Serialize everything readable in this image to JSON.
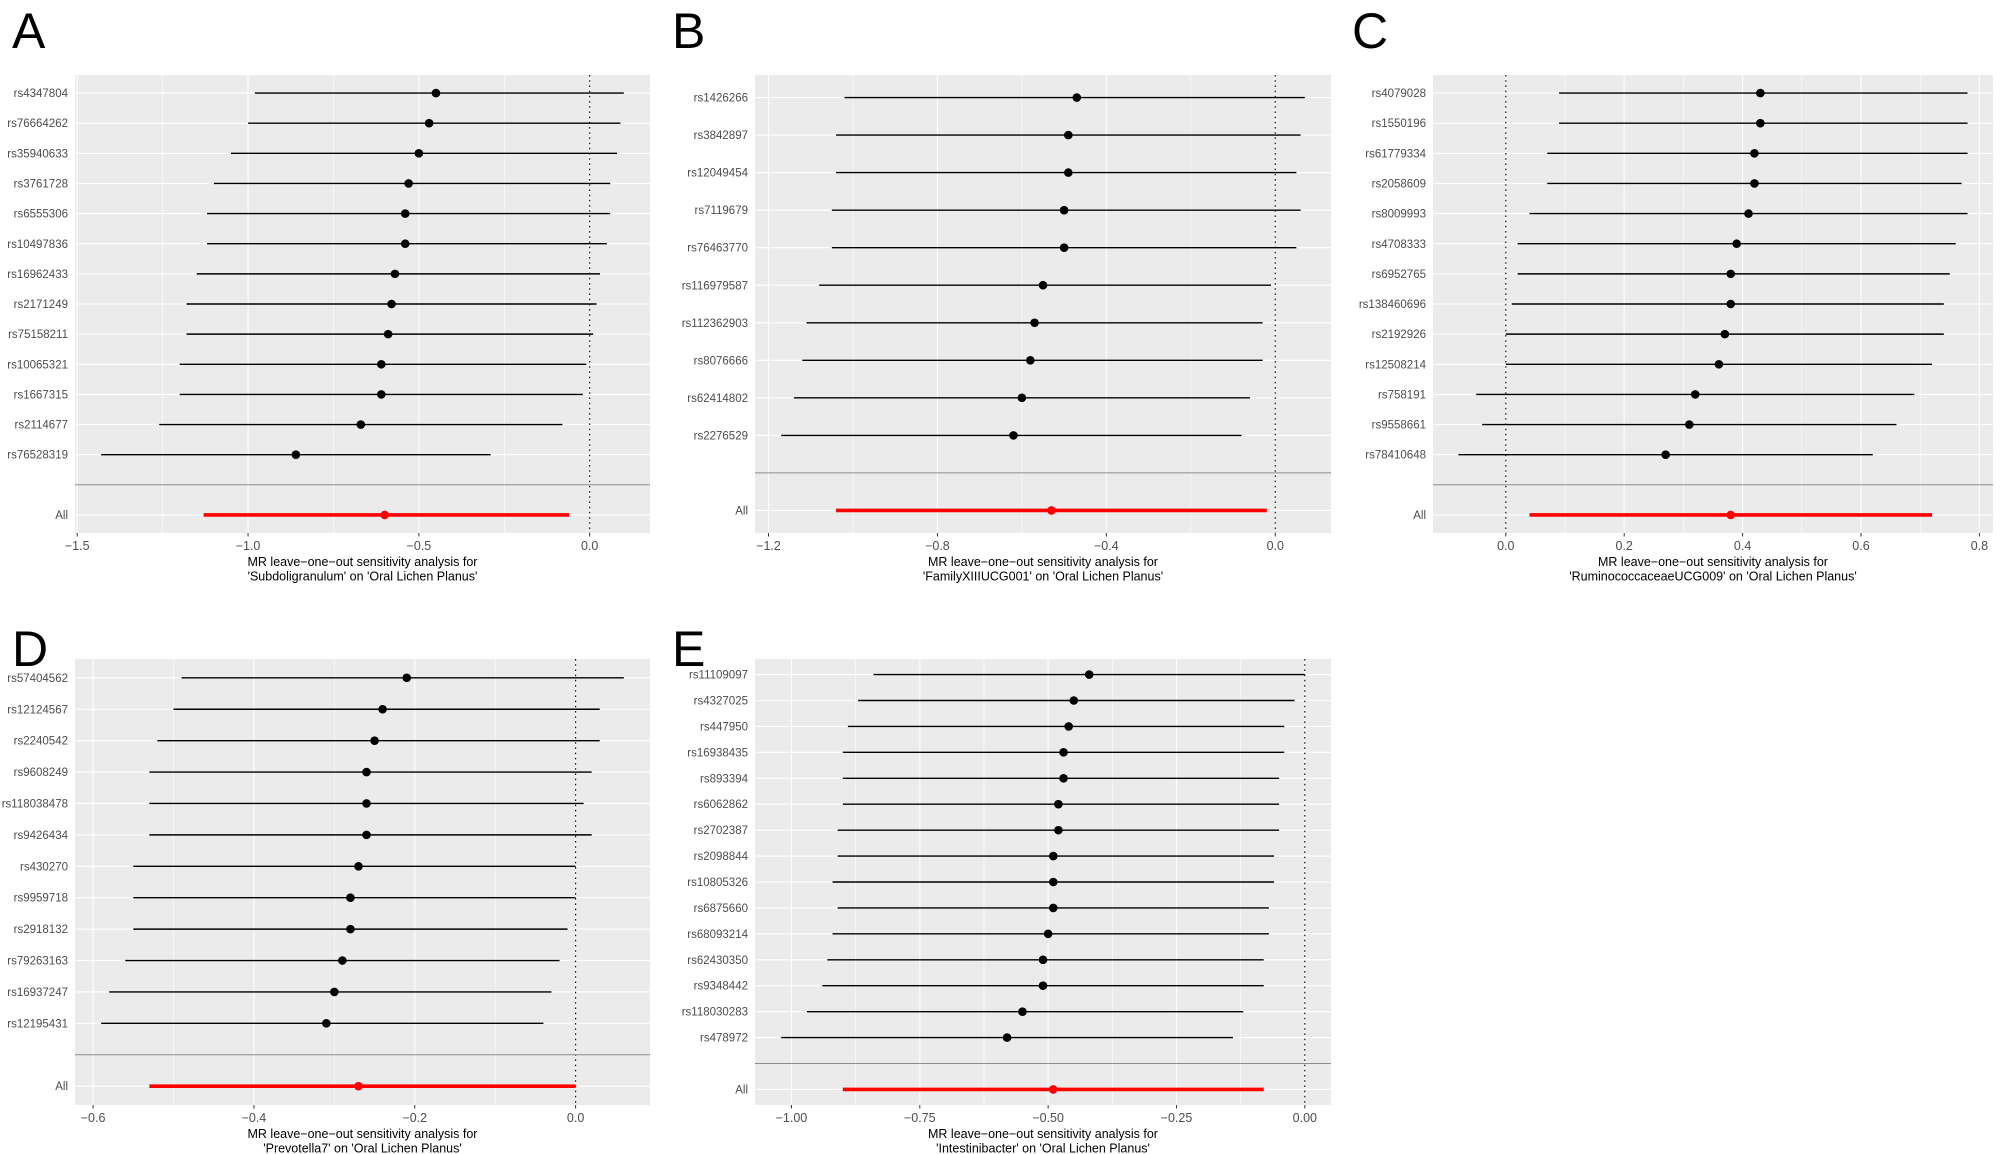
{
  "style": {
    "background": "#ffffff",
    "panel_bg": "#ebebeb",
    "grid_color": "#ffffff",
    "point_color": "#000000",
    "ci_color": "#000000",
    "all_color": "#ff0000",
    "separator_color": "#8c8c8c",
    "axis_text_color": "#4d4d4d",
    "tick_mark_color": "#333333",
    "reference_line_color": "#000000"
  },
  "chart_data": [
    {
      "type": "forest",
      "panel_label": "A",
      "title_line1": "MR leave−one−out sensitivity analysis for",
      "title_line2": "'Subdoligranulum' on 'Oral Lichen Planus'",
      "x_ticks": [
        -1.5,
        -1.0,
        -0.5,
        0.0
      ],
      "x_tick_labels": [
        "−1.5",
        "−1.0",
        "−0.5",
        "0.0"
      ],
      "reference_line_x": 0.0,
      "legend": "none",
      "rows": [
        {
          "snp": "rs4347804",
          "lo": -0.98,
          "est": -0.45,
          "hi": 0.1
        },
        {
          "snp": "rs76664262",
          "lo": -1.0,
          "est": -0.47,
          "hi": 0.09
        },
        {
          "snp": "rs35940633",
          "lo": -1.05,
          "est": -0.5,
          "hi": 0.08
        },
        {
          "snp": "rs3761728",
          "lo": -1.1,
          "est": -0.53,
          "hi": 0.06
        },
        {
          "snp": "rs6555306",
          "lo": -1.12,
          "est": -0.54,
          "hi": 0.06
        },
        {
          "snp": "rs10497836",
          "lo": -1.12,
          "est": -0.54,
          "hi": 0.05
        },
        {
          "snp": "rs16962433",
          "lo": -1.15,
          "est": -0.57,
          "hi": 0.03
        },
        {
          "snp": "rs2171249",
          "lo": -1.18,
          "est": -0.58,
          "hi": 0.02
        },
        {
          "snp": "rs75158211",
          "lo": -1.18,
          "est": -0.59,
          "hi": 0.01
        },
        {
          "snp": "rs10065321",
          "lo": -1.2,
          "est": -0.61,
          "hi": -0.01
        },
        {
          "snp": "rs1667315",
          "lo": -1.2,
          "est": -0.61,
          "hi": -0.02
        },
        {
          "snp": "rs2114677",
          "lo": -1.26,
          "est": -0.67,
          "hi": -0.08
        },
        {
          "snp": "rs76528319",
          "lo": -1.43,
          "est": -0.86,
          "hi": -0.29
        }
      ],
      "all": {
        "label": "All",
        "lo": -1.13,
        "est": -0.6,
        "hi": -0.06
      }
    },
    {
      "type": "forest",
      "panel_label": "B",
      "title_line1": "MR leave−one−out sensitivity analysis for",
      "title_line2": "'FamilyXIIIUCG001' on 'Oral Lichen Planus'",
      "x_ticks": [
        -1.2,
        -0.8,
        -0.4,
        0.0
      ],
      "x_tick_labels": [
        "−1.2",
        "−0.8",
        "−0.4",
        "0.0"
      ],
      "reference_line_x": 0.0,
      "legend": "none",
      "rows": [
        {
          "snp": "rs1426266",
          "lo": -1.02,
          "est": -0.47,
          "hi": 0.07
        },
        {
          "snp": "rs3842897",
          "lo": -1.04,
          "est": -0.49,
          "hi": 0.06
        },
        {
          "snp": "rs12049454",
          "lo": -1.04,
          "est": -0.49,
          "hi": 0.05
        },
        {
          "snp": "rs7119679",
          "lo": -1.05,
          "est": -0.5,
          "hi": 0.06
        },
        {
          "snp": "rs76463770",
          "lo": -1.05,
          "est": -0.5,
          "hi": 0.05
        },
        {
          "snp": "rs116979587",
          "lo": -1.08,
          "est": -0.55,
          "hi": -0.01
        },
        {
          "snp": "rs112362903",
          "lo": -1.11,
          "est": -0.57,
          "hi": -0.03
        },
        {
          "snp": "rs8076666",
          "lo": -1.12,
          "est": -0.58,
          "hi": -0.03
        },
        {
          "snp": "rs62414802",
          "lo": -1.14,
          "est": -0.6,
          "hi": -0.06
        },
        {
          "snp": "rs2276529",
          "lo": -1.17,
          "est": -0.62,
          "hi": -0.08
        }
      ],
      "all": {
        "label": "All",
        "lo": -1.04,
        "est": -0.53,
        "hi": -0.02
      }
    },
    {
      "type": "forest",
      "panel_label": "C",
      "title_line1": "MR leave−one−out sensitivity analysis for",
      "title_line2": "'RuminococcaceaeUCG009' on 'Oral Lichen Planus'",
      "x_ticks": [
        0.0,
        0.2,
        0.4,
        0.6,
        0.8
      ],
      "x_tick_labels": [
        "0.0",
        "0.2",
        "0.4",
        "0.6",
        "0.8"
      ],
      "reference_line_x": 0.0,
      "legend": "none",
      "rows": [
        {
          "snp": "rs4079028",
          "lo": 0.09,
          "est": 0.43,
          "hi": 0.78
        },
        {
          "snp": "rs1550196",
          "lo": 0.09,
          "est": 0.43,
          "hi": 0.78
        },
        {
          "snp": "rs61779334",
          "lo": 0.07,
          "est": 0.42,
          "hi": 0.78
        },
        {
          "snp": "rs2058609",
          "lo": 0.07,
          "est": 0.42,
          "hi": 0.77
        },
        {
          "snp": "rs8009993",
          "lo": 0.04,
          "est": 0.41,
          "hi": 0.78
        },
        {
          "snp": "rs4708333",
          "lo": 0.02,
          "est": 0.39,
          "hi": 0.76
        },
        {
          "snp": "rs6952765",
          "lo": 0.02,
          "est": 0.38,
          "hi": 0.75
        },
        {
          "snp": "rs138460696",
          "lo": 0.01,
          "est": 0.38,
          "hi": 0.74
        },
        {
          "snp": "rs2192926",
          "lo": 0.0,
          "est": 0.37,
          "hi": 0.74
        },
        {
          "snp": "rs12508214",
          "lo": 0.0,
          "est": 0.36,
          "hi": 0.72
        },
        {
          "snp": "rs758191",
          "lo": -0.05,
          "est": 0.32,
          "hi": 0.69
        },
        {
          "snp": "rs9558661",
          "lo": -0.04,
          "est": 0.31,
          "hi": 0.66
        },
        {
          "snp": "rs78410648",
          "lo": -0.08,
          "est": 0.27,
          "hi": 0.62
        }
      ],
      "all": {
        "label": "All",
        "lo": 0.04,
        "est": 0.38,
        "hi": 0.72
      }
    },
    {
      "type": "forest",
      "panel_label": "D",
      "title_line1": "MR leave−one−out sensitivity analysis for",
      "title_line2": "'Prevotella7' on 'Oral Lichen Planus'",
      "x_ticks": [
        -0.6,
        -0.4,
        -0.2,
        0.0
      ],
      "x_tick_labels": [
        "−0.6",
        "−0.4",
        "−0.2",
        "0.0"
      ],
      "reference_line_x": 0.0,
      "legend": "none",
      "rows": [
        {
          "snp": "rs57404562",
          "lo": -0.49,
          "est": -0.21,
          "hi": 0.06
        },
        {
          "snp": "rs12124567",
          "lo": -0.5,
          "est": -0.24,
          "hi": 0.03
        },
        {
          "snp": "rs2240542",
          "lo": -0.52,
          "est": -0.25,
          "hi": 0.03
        },
        {
          "snp": "rs9608249",
          "lo": -0.53,
          "est": -0.26,
          "hi": 0.02
        },
        {
          "snp": "rs118038478",
          "lo": -0.53,
          "est": -0.26,
          "hi": 0.01
        },
        {
          "snp": "rs9426434",
          "lo": -0.53,
          "est": -0.26,
          "hi": 0.02
        },
        {
          "snp": "rs430270",
          "lo": -0.55,
          "est": -0.27,
          "hi": 0.0
        },
        {
          "snp": "rs9959718",
          "lo": -0.55,
          "est": -0.28,
          "hi": 0.0
        },
        {
          "snp": "rs2918132",
          "lo": -0.55,
          "est": -0.28,
          "hi": -0.01
        },
        {
          "snp": "rs79263163",
          "lo": -0.56,
          "est": -0.29,
          "hi": -0.02
        },
        {
          "snp": "rs16937247",
          "lo": -0.58,
          "est": -0.3,
          "hi": -0.03
        },
        {
          "snp": "rs12195431",
          "lo": -0.59,
          "est": -0.31,
          "hi": -0.04
        }
      ],
      "all": {
        "label": "All",
        "lo": -0.53,
        "est": -0.27,
        "hi": 0.0
      }
    },
    {
      "type": "forest",
      "panel_label": "E",
      "title_line1": "MR leave−one−out sensitivity analysis for",
      "title_line2": "'Intestinibacter' on 'Oral Lichen Planus'",
      "x_ticks": [
        -1.0,
        -0.75,
        -0.5,
        -0.25,
        0.0
      ],
      "x_tick_labels": [
        "−1.00",
        "−0.75",
        "−0.50",
        "−0.25",
        "0.00"
      ],
      "reference_line_x": 0.0,
      "legend": "none",
      "rows": [
        {
          "snp": "rs11109097",
          "lo": -0.84,
          "est": -0.42,
          "hi": 0.0
        },
        {
          "snp": "rs4327025",
          "lo": -0.87,
          "est": -0.45,
          "hi": -0.02
        },
        {
          "snp": "rs447950",
          "lo": -0.89,
          "est": -0.46,
          "hi": -0.04
        },
        {
          "snp": "rs16938435",
          "lo": -0.9,
          "est": -0.47,
          "hi": -0.04
        },
        {
          "snp": "rs893394",
          "lo": -0.9,
          "est": -0.47,
          "hi": -0.05
        },
        {
          "snp": "rs6062862",
          "lo": -0.9,
          "est": -0.48,
          "hi": -0.05
        },
        {
          "snp": "rs2702387",
          "lo": -0.91,
          "est": -0.48,
          "hi": -0.05
        },
        {
          "snp": "rs2098844",
          "lo": -0.91,
          "est": -0.49,
          "hi": -0.06
        },
        {
          "snp": "rs10805326",
          "lo": -0.92,
          "est": -0.49,
          "hi": -0.06
        },
        {
          "snp": "rs6875660",
          "lo": -0.91,
          "est": -0.49,
          "hi": -0.07
        },
        {
          "snp": "rs68093214",
          "lo": -0.92,
          "est": -0.5,
          "hi": -0.07
        },
        {
          "snp": "rs62430350",
          "lo": -0.93,
          "est": -0.51,
          "hi": -0.08
        },
        {
          "snp": "rs9348442",
          "lo": -0.94,
          "est": -0.51,
          "hi": -0.08
        },
        {
          "snp": "rs118030283",
          "lo": -0.97,
          "est": -0.55,
          "hi": -0.12
        },
        {
          "snp": "rs478972",
          "lo": -1.02,
          "est": -0.58,
          "hi": -0.14
        }
      ],
      "all": {
        "label": "All",
        "lo": -0.9,
        "est": -0.49,
        "hi": -0.08
      }
    }
  ]
}
